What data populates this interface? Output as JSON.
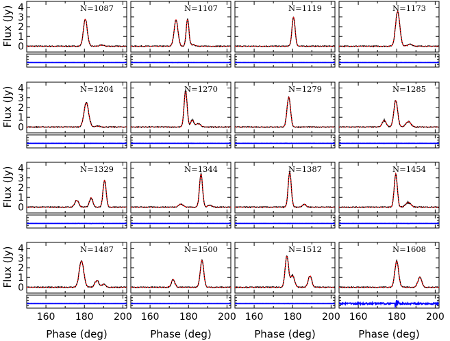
{
  "chart_data": {
    "type": "line",
    "xlabel": "Phase (deg)",
    "ylabel": "Flux (Jy)",
    "xlim": [
      150,
      202
    ],
    "ylim": [
      -0.6,
      4.6
    ],
    "x_ticks": [
      160,
      180,
      200
    ],
    "y_ticks": [
      0,
      1,
      2,
      3,
      4
    ],
    "series_colors": {
      "data": "#000000",
      "model": "#ff0000",
      "residual": "#0000ff"
    },
    "panels": [
      {
        "label": "N=1087",
        "peaks": [
          {
            "x": 180.5,
            "y": 2.8,
            "w": 1.0
          },
          {
            "x": 189,
            "y": 0.12,
            "w": 1.0
          }
        ]
      },
      {
        "label": "N=1107",
        "peaks": [
          {
            "x": 173.5,
            "y": 2.7,
            "w": 1.0
          },
          {
            "x": 179.5,
            "y": 2.75,
            "w": 0.7
          },
          {
            "x": 182,
            "y": 0.15,
            "w": 1.5
          }
        ]
      },
      {
        "label": "N=1119",
        "peaks": [
          {
            "x": 180.5,
            "y": 3.0,
            "w": 0.8
          }
        ]
      },
      {
        "label": "N=1173",
        "peaks": [
          {
            "x": 180.5,
            "y": 3.6,
            "w": 1.1
          },
          {
            "x": 187,
            "y": 0.2,
            "w": 1.2
          }
        ]
      },
      {
        "label": "N=1204",
        "peaks": [
          {
            "x": 181.0,
            "y": 2.5,
            "w": 1.2
          },
          {
            "x": 187,
            "y": 0.1,
            "w": 1.0
          }
        ]
      },
      {
        "label": "N=1270",
        "peaks": [
          {
            "x": 178.5,
            "y": 3.7,
            "w": 0.8
          },
          {
            "x": 182,
            "y": 0.7,
            "w": 0.8
          },
          {
            "x": 185,
            "y": 0.35,
            "w": 1.2
          }
        ]
      },
      {
        "label": "N=1279",
        "peaks": [
          {
            "x": 178.0,
            "y": 3.1,
            "w": 0.9
          }
        ]
      },
      {
        "label": "N=1285",
        "peaks": [
          {
            "x": 173.5,
            "y": 0.7,
            "w": 1.0
          },
          {
            "x": 179.5,
            "y": 2.7,
            "w": 1.0
          },
          {
            "x": 186,
            "y": 0.55,
            "w": 1.3
          }
        ]
      },
      {
        "label": "N=1329",
        "peaks": [
          {
            "x": 176.0,
            "y": 0.7,
            "w": 1.0
          },
          {
            "x": 183.5,
            "y": 0.95,
            "w": 0.9
          },
          {
            "x": 190.5,
            "y": 2.8,
            "w": 0.8
          }
        ]
      },
      {
        "label": "N=1344",
        "peaks": [
          {
            "x": 176.0,
            "y": 0.3,
            "w": 1.2
          },
          {
            "x": 186.5,
            "y": 3.4,
            "w": 0.8
          },
          {
            "x": 191,
            "y": 0.2,
            "w": 1.0
          }
        ]
      },
      {
        "label": "N=1387",
        "peaks": [
          {
            "x": 178.5,
            "y": 3.6,
            "w": 0.8
          },
          {
            "x": 186,
            "y": 0.3,
            "w": 0.9
          }
        ]
      },
      {
        "label": "N=1454",
        "peaks": [
          {
            "x": 179.5,
            "y": 3.4,
            "w": 0.8
          },
          {
            "x": 186,
            "y": 0.5,
            "w": 1.3
          }
        ]
      },
      {
        "label": "N=1487",
        "peaks": [
          {
            "x": 178.5,
            "y": 2.7,
            "w": 1.2
          },
          {
            "x": 186.5,
            "y": 0.7,
            "w": 1.0
          },
          {
            "x": 190,
            "y": 0.3,
            "w": 1.0
          }
        ]
      },
      {
        "label": "N=1500",
        "peaks": [
          {
            "x": 172.0,
            "y": 0.8,
            "w": 0.9
          },
          {
            "x": 187.0,
            "y": 2.8,
            "w": 0.9
          }
        ]
      },
      {
        "label": "N=1512",
        "peaks": [
          {
            "x": 177.0,
            "y": 3.2,
            "w": 0.9
          },
          {
            "x": 180,
            "y": 1.2,
            "w": 1.0
          },
          {
            "x": 189,
            "y": 1.2,
            "w": 0.9
          }
        ]
      },
      {
        "label": "N=1608",
        "peaks": [
          {
            "x": 180.0,
            "y": 2.7,
            "w": 1.0
          },
          {
            "x": 192,
            "y": 1.0,
            "w": 1.0
          }
        ]
      }
    ]
  }
}
